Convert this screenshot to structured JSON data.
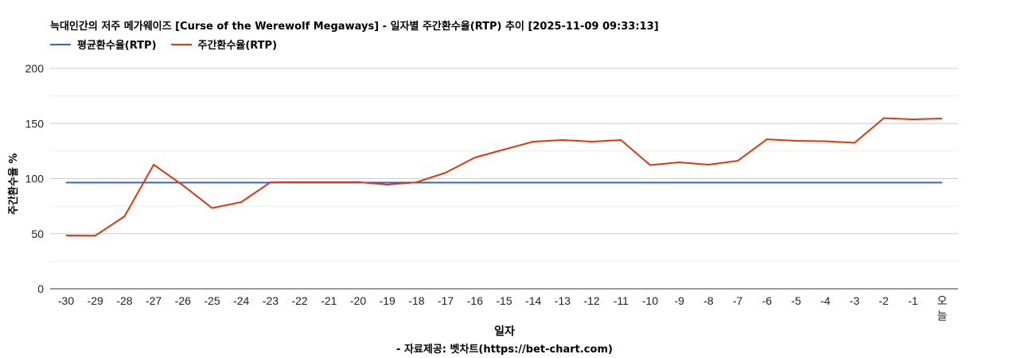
{
  "title": "늑대인간의 저주 메가웨이즈 [Curse of the Werewolf Megaways] - 일자별 주간환수율(RTP) 추이 [2025-11-09 09:33:13]",
  "legend": [
    {
      "label": "평균환수율(RTP)",
      "color": "#3366cc"
    },
    {
      "label": "주간환수율(RTP)",
      "color": "#dc3912"
    }
  ],
  "xlabel": "일자",
  "ylabel": "주간환수율 %",
  "credit": "- 자료제공: 벳차트(https://bet-chart.com)",
  "chart_data": {
    "type": "line",
    "title": "늑대인간의 저주 메가웨이즈 [Curse of the Werewolf Megaways] - 일자별 주간환수율(RTP) 추이 [2025-11-09 09:33:13]",
    "xlabel": "일자",
    "ylabel": "주간환수율 %",
    "ylim": [
      0,
      200
    ],
    "yticks": [
      0,
      50,
      100,
      150,
      200
    ],
    "grid": true,
    "legend_position": "top",
    "categories": [
      "-30",
      "-29",
      "-28",
      "-27",
      "-26",
      "-25",
      "-24",
      "-23",
      "-22",
      "-21",
      "-20",
      "-19",
      "-18",
      "-17",
      "-16",
      "-15",
      "-14",
      "-13",
      "-12",
      "-11",
      "-10",
      "-9",
      "-8",
      "-7",
      "-6",
      "-5",
      "-4",
      "-3",
      "-2",
      "-1",
      "오늘"
    ],
    "series": [
      {
        "name": "평균환수율(RTP)",
        "color": "#3366cc",
        "values": [
          96.4,
          96.4,
          96.4,
          96.4,
          96.4,
          96.4,
          96.4,
          96.4,
          96.4,
          96.4,
          96.4,
          96.4,
          96.4,
          96.4,
          96.4,
          96.4,
          96.4,
          96.4,
          96.4,
          96.4,
          96.4,
          96.4,
          96.4,
          96.4,
          96.4,
          96.4,
          96.4,
          96.4,
          96.4,
          96.4,
          96.4
        ]
      },
      {
        "name": "주간환수율(RTP)",
        "color": "#dc3912",
        "values": [
          48.4,
          48.2,
          65.7,
          112.6,
          93.9,
          73.3,
          78.7,
          96.7,
          96.8,
          96.8,
          96.8,
          94.6,
          96.7,
          105.4,
          119.1,
          126.4,
          133.6,
          135.0,
          133.6,
          135.0,
          112.3,
          114.8,
          112.6,
          116.2,
          135.7,
          134.3,
          133.9,
          132.5,
          154.9,
          153.8,
          154.5
        ]
      }
    ]
  }
}
